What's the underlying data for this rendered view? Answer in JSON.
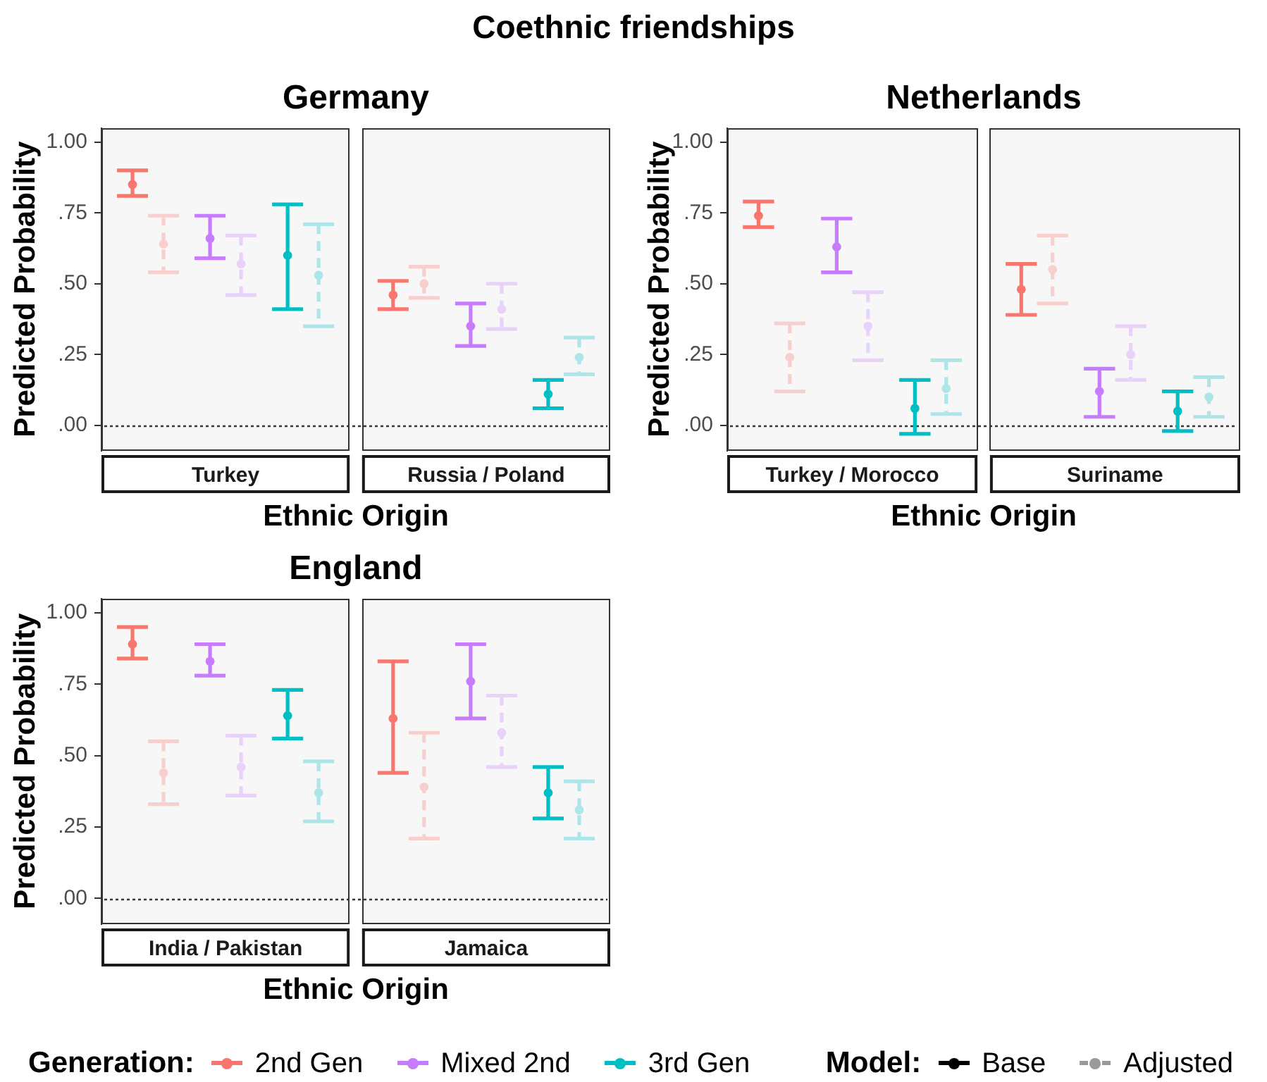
{
  "chart_data": [
    {
      "type": "other",
      "title": "Coethnic friendships"
    },
    {
      "type": "scatter",
      "title": "Germany",
      "xlabel": "Ethnic Origin",
      "ylabel": "Predicted Probability",
      "categories": [
        "Turkey",
        "Russia / Poland"
      ],
      "ylim": [
        -0.09,
        1.05
      ],
      "yticks": [
        {
          "value": 0,
          "label": ".00"
        },
        {
          "value": 0.25,
          "label": ".25"
        },
        {
          "value": 0.5,
          "label": ".50"
        },
        {
          "value": 0.75,
          "label": ".75"
        },
        {
          "value": 1,
          "label": "1.00"
        }
      ],
      "marker": "circle",
      "line_style": "solid",
      "ref_lines": [
        {
          "axis": "y",
          "value": 0,
          "color": "#333333",
          "line_style": "dotted"
        }
      ],
      "series": [
        {
          "color": "#f8766d",
          "values": [
            0.85,
            0.46
          ],
          "errors": [
            [
              0.81,
              0.9
            ],
            [
              0.41,
              0.51
            ]
          ]
        },
        {
          "color": "#f7d0ce",
          "line_style": "dashed",
          "values": [
            0.64,
            0.5
          ],
          "errors": [
            [
              0.54,
              0.74
            ],
            [
              0.45,
              0.56
            ]
          ]
        },
        {
          "color": "#c77cff",
          "values": [
            0.66,
            0.35
          ],
          "errors": [
            [
              0.59,
              0.74
            ],
            [
              0.28,
              0.43
            ]
          ]
        },
        {
          "color": "#e9d2f9",
          "line_style": "dashed",
          "values": [
            0.57,
            0.41
          ],
          "errors": [
            [
              0.46,
              0.67
            ],
            [
              0.34,
              0.5
            ]
          ]
        },
        {
          "color": "#00bfc4",
          "values": [
            0.6,
            0.11
          ],
          "errors": [
            [
              0.41,
              0.78
            ],
            [
              0.06,
              0.16
            ]
          ]
        },
        {
          "color": "#ade6e8",
          "line_style": "dashed",
          "values": [
            0.53,
            0.24
          ],
          "errors": [
            [
              0.35,
              0.71
            ],
            [
              0.18,
              0.31
            ]
          ]
        }
      ]
    },
    {
      "type": "scatter",
      "title": "Netherlands",
      "xlabel": "Ethnic Origin",
      "ylabel": "Predicted Probability",
      "categories": [
        "Turkey / Morocco",
        "Suriname"
      ],
      "ylim": [
        -0.09,
        1.05
      ],
      "yticks": [
        {
          "value": 0,
          "label": ".00"
        },
        {
          "value": 0.25,
          "label": ".25"
        },
        {
          "value": 0.5,
          "label": ".50"
        },
        {
          "value": 0.75,
          "label": ".75"
        },
        {
          "value": 1,
          "label": "1.00"
        }
      ],
      "marker": "circle",
      "line_style": "solid",
      "ref_lines": [
        {
          "axis": "y",
          "value": 0,
          "color": "#333333",
          "line_style": "dotted"
        }
      ],
      "series": [
        {
          "color": "#f8766d",
          "values": [
            0.74,
            0.48
          ],
          "errors": [
            [
              0.7,
              0.79
            ],
            [
              0.39,
              0.57
            ]
          ]
        },
        {
          "color": "#f7d0ce",
          "line_style": "dashed",
          "values": [
            0.24,
            0.55
          ],
          "errors": [
            [
              0.12,
              0.36
            ],
            [
              0.43,
              0.67
            ]
          ]
        },
        {
          "color": "#c77cff",
          "values": [
            0.63,
            0.12
          ],
          "errors": [
            [
              0.54,
              0.73
            ],
            [
              0.03,
              0.2
            ]
          ]
        },
        {
          "color": "#e9d2f9",
          "line_style": "dashed",
          "values": [
            0.35,
            0.25
          ],
          "errors": [
            [
              0.23,
              0.47
            ],
            [
              0.16,
              0.35
            ]
          ]
        },
        {
          "color": "#00bfc4",
          "values": [
            0.06,
            0.05
          ],
          "errors": [
            [
              -0.03,
              0.16
            ],
            [
              -0.02,
              0.12
            ]
          ]
        },
        {
          "color": "#ade6e8",
          "line_style": "dashed",
          "values": [
            0.13,
            0.1
          ],
          "errors": [
            [
              0.04,
              0.23
            ],
            [
              0.03,
              0.17
            ]
          ]
        }
      ]
    },
    {
      "type": "scatter",
      "title": "England",
      "xlabel": "Ethnic Origin",
      "ylabel": "Predicted Probability",
      "categories": [
        "India / Pakistan",
        "Jamaica"
      ],
      "ylim": [
        -0.09,
        1.05
      ],
      "yticks": [
        {
          "value": 0,
          "label": ".00"
        },
        {
          "value": 0.25,
          "label": ".25"
        },
        {
          "value": 0.5,
          "label": ".50"
        },
        {
          "value": 0.75,
          "label": ".75"
        },
        {
          "value": 1,
          "label": "1.00"
        }
      ],
      "marker": "circle",
      "line_style": "solid",
      "ref_lines": [
        {
          "axis": "y",
          "value": 0,
          "color": "#333333",
          "line_style": "dotted"
        }
      ],
      "legend": "bottom",
      "legend_title": "Generation:",
      "annotations": [
        "Model:",
        "Base",
        "Adjusted"
      ],
      "series": [
        {
          "name": "2nd Gen",
          "color": "#f8766d",
          "values": [
            0.89,
            0.63
          ],
          "errors": [
            [
              0.84,
              0.95
            ],
            [
              0.44,
              0.83
            ]
          ]
        },
        {
          "color": "#f7d0ce",
          "line_style": "dashed",
          "values": [
            0.44,
            0.39
          ],
          "errors": [
            [
              0.33,
              0.55
            ],
            [
              0.21,
              0.58
            ]
          ]
        },
        {
          "name": "Mixed 2nd",
          "color": "#c77cff",
          "values": [
            0.83,
            0.76
          ],
          "errors": [
            [
              0.78,
              0.89
            ],
            [
              0.63,
              0.89
            ]
          ]
        },
        {
          "color": "#e9d2f9",
          "line_style": "dashed",
          "values": [
            0.46,
            0.58
          ],
          "errors": [
            [
              0.36,
              0.57
            ],
            [
              0.46,
              0.71
            ]
          ]
        },
        {
          "name": "3rd Gen",
          "color": "#00bfc4",
          "values": [
            0.64,
            0.37
          ],
          "errors": [
            [
              0.56,
              0.73
            ],
            [
              0.28,
              0.46
            ]
          ]
        },
        {
          "color": "#ade6e8",
          "line_style": "dashed",
          "values": [
            0.37,
            0.31
          ],
          "errors": [
            [
              0.27,
              0.48
            ],
            [
              0.21,
              0.41
            ]
          ]
        }
      ]
    }
  ]
}
